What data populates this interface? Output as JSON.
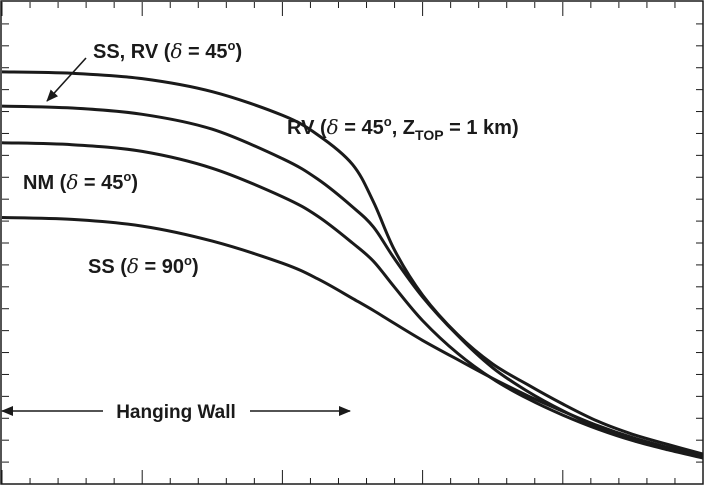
{
  "chart_data": {
    "type": "line",
    "title": "",
    "xlabel": "",
    "ylabel": "",
    "grid": false,
    "xlim": [
      0,
      100
    ],
    "ylim": [
      0,
      100
    ],
    "tick_labels": "none",
    "series": [
      {
        "name": "RV (δ = 45°, Z_TOP = 1 km)",
        "label": {
          "prefix": "RV (",
          "delta": "δ",
          "eq": " = 45",
          "deg": "o",
          "mid": ", Z",
          "sub": "TOP",
          "end": " = 1 km)"
        },
        "x": [
          0,
          10,
          20,
          30,
          40,
          45,
          50,
          53,
          56,
          60,
          65,
          70,
          75,
          80,
          85,
          90,
          95,
          100
        ],
        "y": [
          85.5,
          85.2,
          84.1,
          81.4,
          76.5,
          72.5,
          66.3,
          58.5,
          48.5,
          39.2,
          31.0,
          24.9,
          20.6,
          16.6,
          13.0,
          10.3,
          8.2,
          6.2
        ]
      },
      {
        "name": "SS, RV (δ = 45°)",
        "label": {
          "prefix": "SS, RV (",
          "delta": "δ",
          "eq": " = 45",
          "deg": "o",
          "end": ")"
        },
        "x": [
          0,
          10,
          20,
          30,
          40,
          45,
          50,
          53,
          56,
          60,
          65,
          70,
          75,
          80,
          85,
          90,
          95,
          100
        ],
        "y": [
          78.4,
          78.0,
          76.7,
          73.6,
          67.5,
          63.3,
          57.5,
          53.3,
          46.7,
          38.8,
          30.8,
          24.1,
          19.2,
          15.2,
          11.8,
          9.3,
          7.5,
          5.7
        ]
      },
      {
        "name": "NM (δ = 45°)",
        "label": {
          "prefix": "NM (",
          "delta": "δ",
          "eq": " = 45",
          "deg": "o",
          "end": ")"
        },
        "x": [
          0,
          10,
          20,
          30,
          40,
          45,
          50,
          53,
          56,
          60,
          65,
          70,
          75,
          80,
          85,
          90,
          95,
          100
        ],
        "y": [
          70.8,
          70.4,
          69.0,
          65.5,
          59.6,
          55.6,
          50.0,
          46.2,
          40.8,
          33.9,
          27.1,
          21.8,
          17.7,
          14.3,
          11.4,
          9.0,
          7.1,
          5.4
        ]
      },
      {
        "name": "SS (δ = 90°)",
        "label": {
          "prefix": "SS (",
          "delta": "δ",
          "eq": " = 90",
          "deg": "o",
          "end": ")"
        },
        "x": [
          0,
          10,
          20,
          30,
          40,
          45,
          50,
          53,
          56,
          60,
          65,
          70,
          75,
          80,
          85,
          90,
          95,
          100
        ],
        "y": [
          55.3,
          54.9,
          53.5,
          50.4,
          45.8,
          42.6,
          38.5,
          36.0,
          33.3,
          29.8,
          25.8,
          21.9,
          18.3,
          15.1,
          12.1,
          9.6,
          7.6,
          5.9
        ]
      }
    ],
    "annotation": {
      "text": "Hanging Wall",
      "x_from": 0,
      "x_to": 50
    },
    "x_ticks": {
      "count": 5
    },
    "y_ticks": {
      "count": 22
    }
  }
}
